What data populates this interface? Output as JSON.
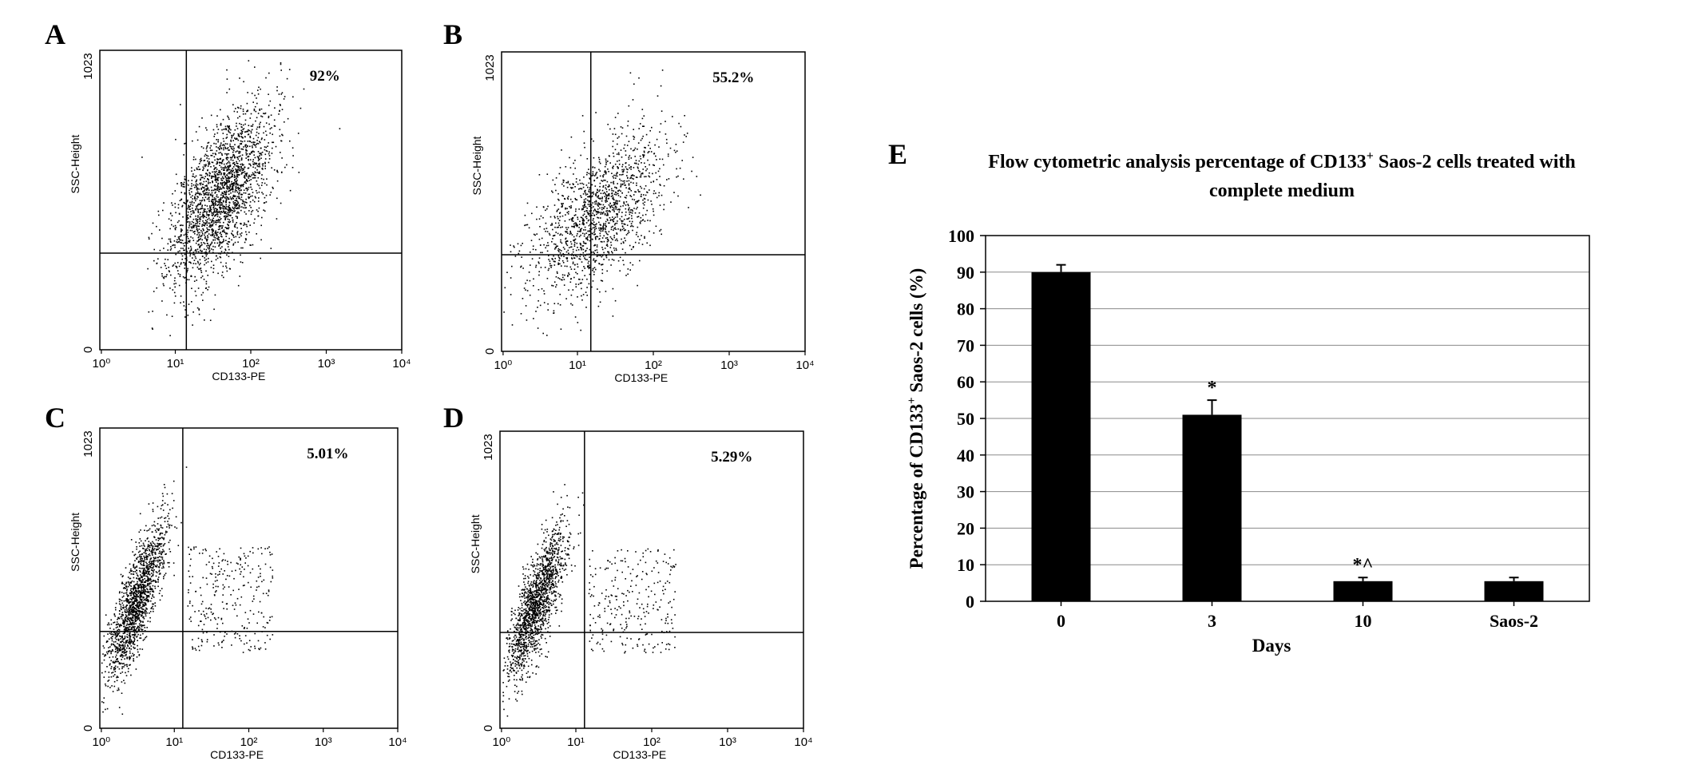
{
  "panels": [
    {
      "id": "A",
      "letter": "A",
      "percent": "92%",
      "x_label": "CD133-PE",
      "y_label": "SSC-Height",
      "y_ticks": [
        "0",
        "1023"
      ],
      "x_ticks": [
        "10⁰",
        "10¹",
        "10²",
        "10³",
        "10⁴"
      ]
    },
    {
      "id": "B",
      "letter": "B",
      "percent": "55.2%",
      "x_label": "CD133-PE",
      "y_label": "SSC-Height",
      "y_ticks": [
        "0",
        "1023"
      ],
      "x_ticks": [
        "10⁰",
        "10¹",
        "10²",
        "10³",
        "10⁴"
      ]
    },
    {
      "id": "C",
      "letter": "C",
      "percent": "5.01%",
      "x_label": "CD133-PE",
      "y_label": "SSC-Height",
      "y_ticks": [
        "0",
        "1023"
      ],
      "x_ticks": [
        "10⁰",
        "10¹",
        "10²",
        "10³",
        "10⁴"
      ]
    },
    {
      "id": "D",
      "letter": "D",
      "percent": "5.29%",
      "x_label": "CD133-PE",
      "y_label": "SSC-Height",
      "y_ticks": [
        "0",
        "1023"
      ],
      "x_ticks": [
        "10⁰",
        "10¹",
        "10²",
        "10³",
        "10⁴"
      ]
    }
  ],
  "chart_data": [
    {
      "type": "scatter",
      "panel": "A",
      "x_scale": "log",
      "x_range": [
        1,
        10000
      ],
      "y_range": [
        0,
        1023
      ],
      "quadrant_gate": {
        "x": 14,
        "y": 330
      },
      "population_center": {
        "x": 40,
        "y": 530
      },
      "upper_right_percent": 92
    },
    {
      "type": "scatter",
      "panel": "B",
      "x_scale": "log",
      "x_range": [
        1,
        10000
      ],
      "y_range": [
        0,
        1023
      ],
      "quadrant_gate": {
        "x": 15,
        "y": 330
      },
      "population_center": {
        "x": 18,
        "y": 460
      },
      "upper_right_percent": 55.2
    },
    {
      "type": "scatter",
      "panel": "C",
      "x_scale": "log",
      "x_range": [
        1,
        10000
      ],
      "y_range": [
        0,
        1023
      ],
      "quadrant_gate": {
        "x": 13,
        "y": 330
      },
      "population_center": {
        "x": 3,
        "y": 430
      },
      "upper_right_percent": 5.01
    },
    {
      "type": "scatter",
      "panel": "D",
      "x_scale": "log",
      "x_range": [
        1,
        10000
      ],
      "y_range": [
        0,
        1023
      ],
      "quadrant_gate": {
        "x": 13,
        "y": 330
      },
      "population_center": {
        "x": 3,
        "y": 430
      },
      "upper_right_percent": 5.29
    },
    {
      "type": "bar",
      "panel": "E",
      "letter": "E",
      "title_line1": "Flow cytometric analysis  percentage of CD133",
      "title_sup": "+",
      "title_line1_end": " Saos-2 cells treated with",
      "title_line2": "complete medium",
      "ylabel_pre": "Percentage of CD133",
      "ylabel_sup": "+",
      "ylabel_post": " Saos-2 cells (%)",
      "xlabel": "Days",
      "categories": [
        "0",
        "3",
        "10",
        "Saos-2"
      ],
      "values": [
        90,
        51,
        5.5,
        5.5
      ],
      "errors": [
        2,
        4,
        1,
        1
      ],
      "annotations": [
        "",
        "*",
        "*^",
        ""
      ],
      "ylim": [
        0,
        100
      ],
      "yticks": [
        "0",
        "10",
        "20",
        "30",
        "40",
        "50",
        "60",
        "70",
        "80",
        "90",
        "100"
      ],
      "grid": true,
      "bar_color": "#000000"
    }
  ]
}
